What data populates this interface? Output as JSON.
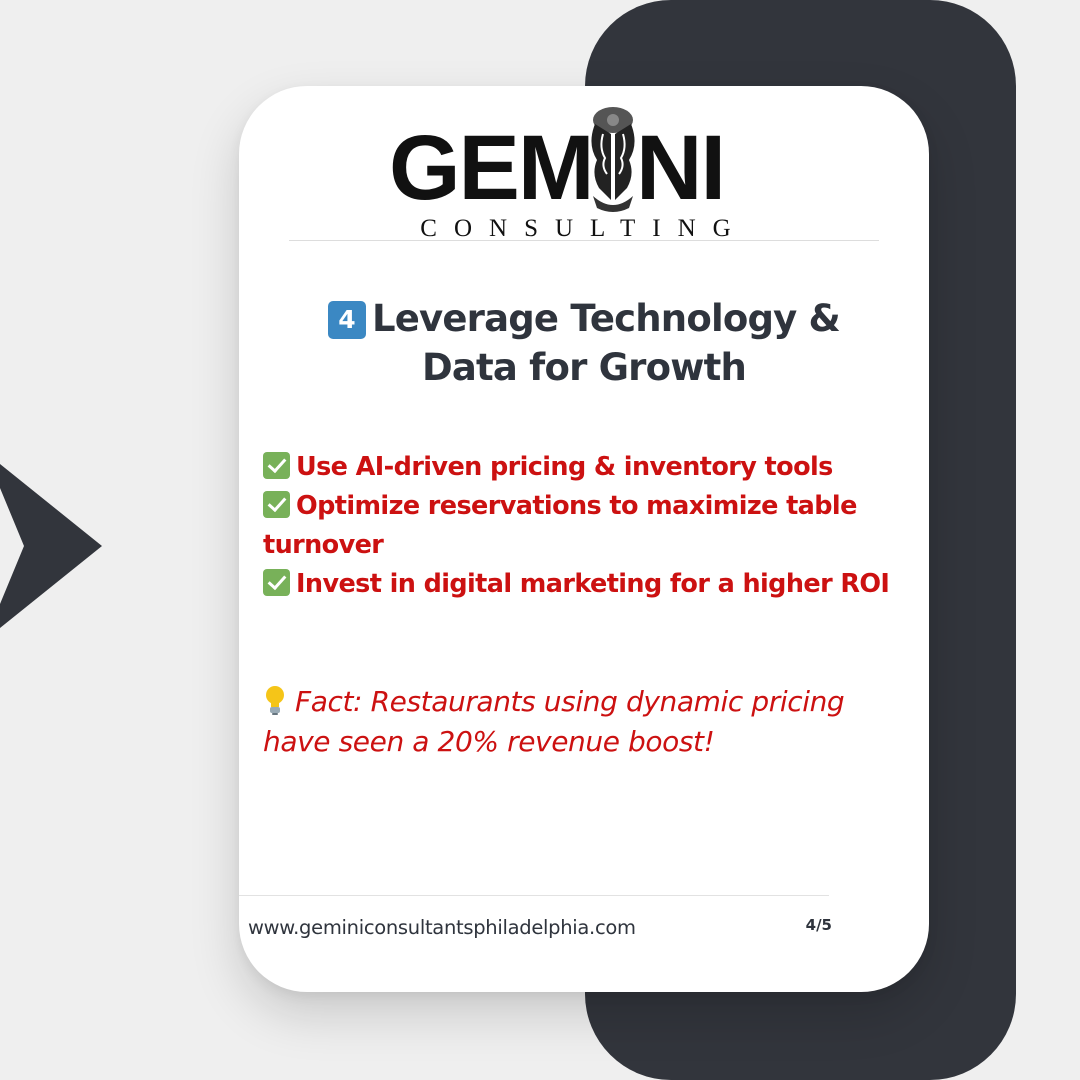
{
  "logo": {
    "word_left": "GEM",
    "word_right": "NI",
    "subtitle": "CONSULTING"
  },
  "slide": {
    "number": "4",
    "heading_line1": "Leverage Technology &",
    "heading_line2": "Data for Growth",
    "points": [
      {
        "icon": "check-mark-icon",
        "text": "Use AI-driven pricing & inventory tools"
      },
      {
        "icon": "check-mark-icon",
        "text": "Optimize reservations to maximize table turnover"
      },
      {
        "icon": "check-mark-icon",
        "text": "Invest in digital marketing for a higher ROI"
      }
    ],
    "fact": {
      "icon": "light-bulb-icon",
      "text": "Fact: Restaurants using dynamic pricing have seen a 20% revenue boost!"
    }
  },
  "footer": {
    "url": "www.geminiconsultantsphiladelphia.com",
    "page": "4/5"
  },
  "colors": {
    "background": "#efefef",
    "dark_panel": "#32353c",
    "card": "#ffffff",
    "heading": "#2f343d",
    "accent_red": "#cc1111",
    "keycap_blue": "#3b88c3",
    "check_green": "#78b159"
  }
}
